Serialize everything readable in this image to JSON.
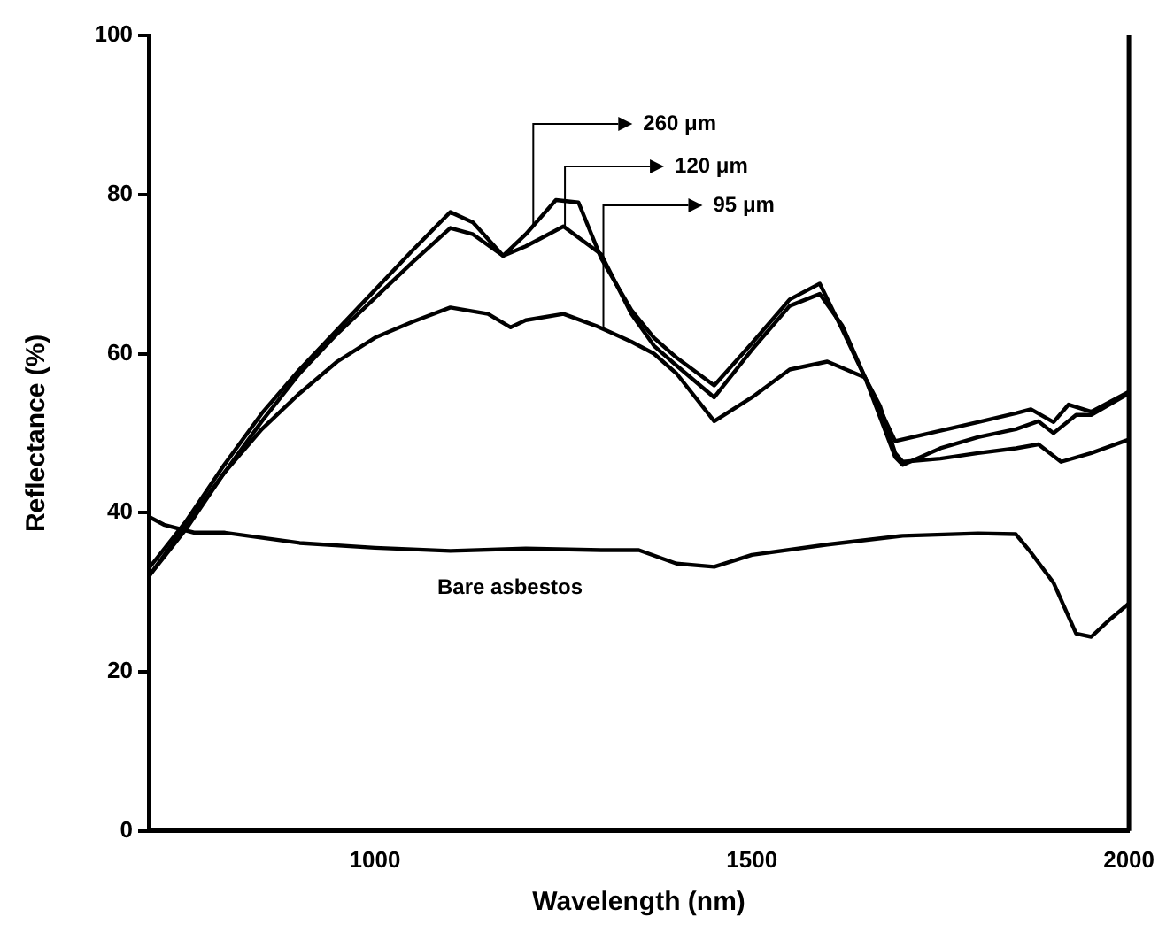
{
  "chart_data": {
    "type": "line",
    "xlabel": "Wavelength (nm)",
    "ylabel": "Reflectance (%)",
    "annotations": [
      {
        "text": "260 μm",
        "x": 1210,
        "y": 76
      },
      {
        "text": "120 μm",
        "x": 1252,
        "y": 76
      },
      {
        "text": "95 μm",
        "x": 1303,
        "y": 63
      },
      "Bare asbestos"
    ],
    "xlim": [
      700,
      2000
    ],
    "xticks": [
      1000,
      1500,
      2000
    ],
    "ylim": [
      0,
      100
    ],
    "yticks": [
      0,
      20,
      40,
      60,
      80,
      100
    ],
    "grid": false,
    "legend": false,
    "marker": "none",
    "line_style": "solid",
    "series": [
      {
        "color": "#000000",
        "x": [
          700,
          750,
          800,
          850,
          900,
          950,
          1000,
          1050,
          1100,
          1130,
          1170,
          1200,
          1240,
          1270,
          1300,
          1340,
          1370,
          1400,
          1450,
          1500,
          1550,
          1590,
          1620,
          1650,
          1690,
          1750,
          1800,
          1850,
          1870,
          1900,
          1920,
          1950,
          2000
        ],
        "values": [
          33,
          39,
          46,
          52.5,
          58,
          63,
          68,
          73,
          77.8,
          76.5,
          72.3,
          75,
          79.3,
          79,
          72,
          65.5,
          62,
          59.5,
          56,
          61.3,
          66.8,
          68.8,
          63,
          57,
          49,
          50.3,
          51.4,
          52.5,
          53,
          51.4,
          53.6,
          52.7,
          55.2
        ]
      },
      {
        "color": "#000000",
        "x": [
          700,
          750,
          800,
          850,
          900,
          950,
          1000,
          1050,
          1100,
          1130,
          1170,
          1200,
          1250,
          1300,
          1340,
          1370,
          1400,
          1450,
          1500,
          1550,
          1590,
          1620,
          1650,
          1690,
          1700,
          1750,
          1800,
          1850,
          1880,
          1900,
          1930,
          1950,
          2000
        ],
        "values": [
          32,
          38,
          45,
          51.5,
          57.5,
          62.5,
          67,
          71.5,
          75.8,
          75,
          72.3,
          73.5,
          76,
          72.5,
          65,
          61,
          58.5,
          54.5,
          60.5,
          66,
          67.5,
          63.5,
          57,
          47,
          46,
          48.1,
          49.5,
          50.5,
          51.5,
          50,
          52.3,
          52.3,
          55
        ]
      },
      {
        "color": "#000000",
        "x": [
          700,
          750,
          800,
          850,
          900,
          950,
          1000,
          1050,
          1100,
          1150,
          1180,
          1200,
          1250,
          1293,
          1340,
          1370,
          1400,
          1450,
          1500,
          1550,
          1600,
          1650,
          1670,
          1690,
          1700,
          1750,
          1800,
          1850,
          1880,
          1910,
          1950,
          2000
        ],
        "values": [
          32,
          38.5,
          45,
          50.5,
          55,
          59,
          62,
          64,
          65.8,
          65,
          63.3,
          64.2,
          65,
          63.5,
          61.5,
          60,
          57.5,
          51.5,
          54.5,
          58,
          59,
          57,
          53.4,
          47.5,
          46.4,
          46.8,
          47.5,
          48.1,
          48.6,
          46.4,
          47.5,
          49.2
        ]
      },
      {
        "color": "#000000",
        "x": [
          700,
          720,
          760,
          800,
          900,
          1000,
          1100,
          1200,
          1300,
          1350,
          1400,
          1450,
          1500,
          1600,
          1700,
          1800,
          1850,
          1870,
          1900,
          1930,
          1950,
          1975,
          2000
        ],
        "values": [
          39.5,
          38.5,
          37.5,
          37.5,
          36.2,
          35.6,
          35.2,
          35.5,
          35.3,
          35.3,
          33.6,
          33.2,
          34.7,
          36,
          37.1,
          37.4,
          37.3,
          35,
          31.2,
          24.8,
          24.4,
          26.6,
          28.6
        ]
      }
    ]
  }
}
